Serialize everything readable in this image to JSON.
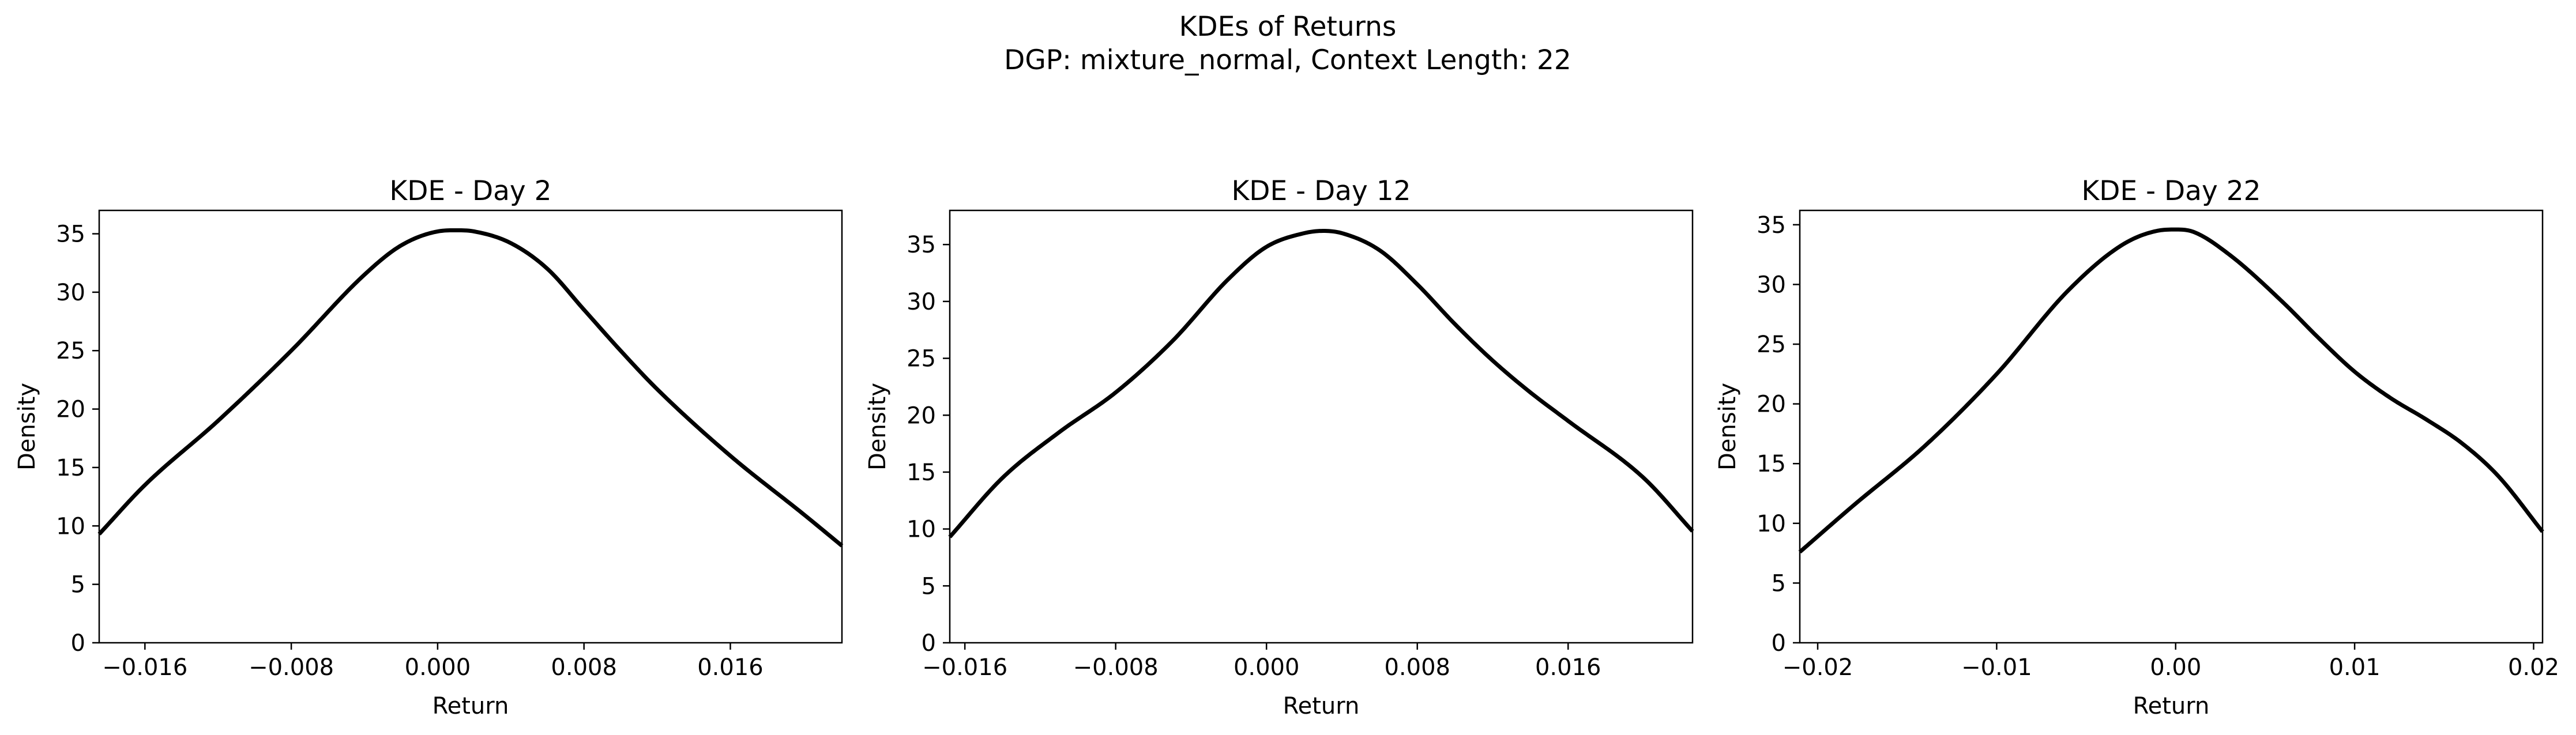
{
  "figure": {
    "title_line1": "KDEs of Returns",
    "title_line2": "DGP: mixture_normal, Context Length: 22",
    "line_color": "#000000",
    "background": "#ffffff"
  },
  "chart_data": [
    {
      "type": "line",
      "title": "KDE - Day 2",
      "xlabel": "Return",
      "ylabel": "Density",
      "xlim": [
        -0.0185,
        0.0221
      ],
      "ylim": [
        0,
        37
      ],
      "xticks": [
        -0.016,
        -0.008,
        0.0,
        0.008,
        0.016
      ],
      "xtick_labels": [
        "−0.016",
        "−0.008",
        "0.000",
        "0.008",
        "0.016"
      ],
      "yticks": [
        0,
        5,
        10,
        15,
        20,
        25,
        30,
        35
      ],
      "ytick_labels": [
        "0",
        "5",
        "10",
        "15",
        "20",
        "25",
        "30",
        "35"
      ],
      "grid": false,
      "series": [
        {
          "x": [
            -0.0185,
            -0.016,
            -0.012,
            -0.008,
            -0.004,
            -0.002,
            0.0,
            0.001,
            0.002,
            0.004,
            0.006,
            0.008,
            0.01,
            0.012,
            0.016,
            0.02,
            0.0221
          ],
          "y": [
            9.3,
            13.5,
            19.0,
            25.0,
            31.5,
            34.0,
            35.2,
            35.3,
            35.2,
            34.2,
            32.0,
            28.5,
            25.0,
            21.7,
            16.0,
            11.0,
            8.3
          ]
        }
      ]
    },
    {
      "type": "line",
      "title": "KDE - Day 12",
      "xlabel": "Return",
      "ylabel": "Density",
      "xlim": [
        -0.0168,
        0.0226
      ],
      "ylim": [
        0,
        38
      ],
      "xticks": [
        -0.016,
        -0.008,
        0.0,
        0.008,
        0.016
      ],
      "xtick_labels": [
        "−0.016",
        "−0.008",
        "0.000",
        "0.008",
        "0.016"
      ],
      "yticks": [
        0,
        5,
        10,
        15,
        20,
        25,
        30,
        35
      ],
      "ytick_labels": [
        "0",
        "5",
        "10",
        "15",
        "20",
        "25",
        "30",
        "35"
      ],
      "grid": false,
      "series": [
        {
          "x": [
            -0.0168,
            -0.014,
            -0.011,
            -0.008,
            -0.005,
            -0.002,
            0.0,
            0.002,
            0.003,
            0.004,
            0.006,
            0.008,
            0.01,
            0.012,
            0.014,
            0.016,
            0.02,
            0.0226
          ],
          "y": [
            9.3,
            14.5,
            18.5,
            22.0,
            26.5,
            32.0,
            34.8,
            36.0,
            36.2,
            36.0,
            34.5,
            31.5,
            28.0,
            24.8,
            22.0,
            19.5,
            14.5,
            9.8
          ]
        }
      ]
    },
    {
      "type": "line",
      "title": "KDE - Day 22",
      "xlabel": "Return",
      "ylabel": "Density",
      "xlim": [
        -0.021,
        0.0205
      ],
      "ylim": [
        0,
        36.2
      ],
      "xticks": [
        -0.02,
        -0.01,
        0.0,
        0.01,
        0.02
      ],
      "xtick_labels": [
        "−0.02",
        "−0.01",
        "0.00",
        "0.01",
        "0.02"
      ],
      "yticks": [
        0,
        5,
        10,
        15,
        20,
        25,
        30,
        35
      ],
      "ytick_labels": [
        "0",
        "5",
        "10",
        "15",
        "20",
        "25",
        "30",
        "35"
      ],
      "grid": false,
      "series": [
        {
          "x": [
            -0.021,
            -0.018,
            -0.014,
            -0.01,
            -0.006,
            -0.003,
            -0.001,
            0.0,
            0.001,
            0.003,
            0.006,
            0.008,
            0.01,
            0.012,
            0.014,
            0.016,
            0.018,
            0.0205
          ],
          "y": [
            7.6,
            11.5,
            16.5,
            22.5,
            29.5,
            33.3,
            34.5,
            34.6,
            34.4,
            32.5,
            28.5,
            25.5,
            22.7,
            20.5,
            18.7,
            16.7,
            14.0,
            9.3
          ]
        }
      ]
    }
  ]
}
